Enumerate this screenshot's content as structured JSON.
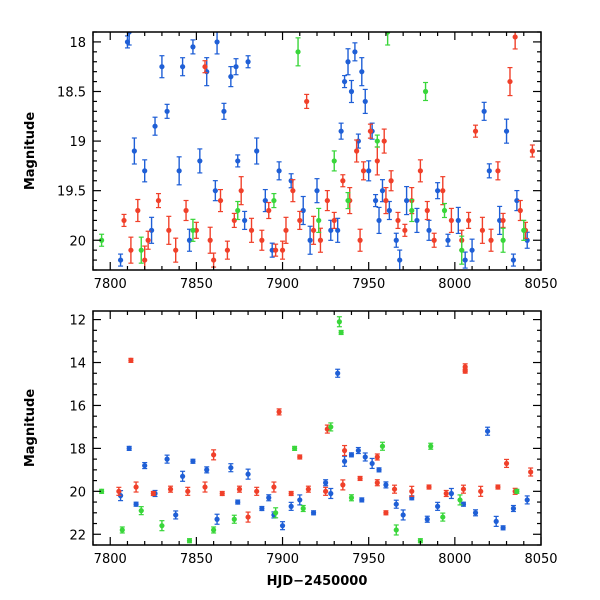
{
  "colors": {
    "blue": "#1f5fd6",
    "red": "#f0402a",
    "green": "#39d63a",
    "axis": "#000000"
  },
  "chart_data": [
    {
      "type": "scatter",
      "xlabel": "",
      "ylabel": "Magnitude",
      "xlim": [
        7790,
        8050
      ],
      "ylim": [
        20.3,
        17.9
      ],
      "y_inverted": true,
      "xticks": [
        7800,
        7850,
        7900,
        7950,
        8000,
        8050
      ],
      "yticks": [
        18,
        18.5,
        19,
        19.5,
        20
      ],
      "ytick_labels": [
        "18",
        "18.5",
        "19",
        "19.5",
        "20"
      ],
      "error_bars": true,
      "series": [
        {
          "color": "blue",
          "points": [
            [
              7810,
              18.0
            ],
            [
              7811,
              17.9
            ],
            [
              7830,
              18.25
            ],
            [
              7842,
              18.25
            ],
            [
              7848,
              18.05
            ],
            [
              7856,
              18.3
            ],
            [
              7862,
              18.0
            ],
            [
              7870,
              18.35
            ],
            [
              7873,
              18.25
            ],
            [
              7880,
              18.2
            ],
            [
              7814,
              19.1
            ],
            [
              7820,
              19.3
            ],
            [
              7826,
              18.85
            ],
            [
              7833,
              18.7
            ],
            [
              7840,
              19.3
            ],
            [
              7852,
              19.2
            ],
            [
              7861,
              19.5
            ],
            [
              7866,
              18.7
            ],
            [
              7874,
              19.2
            ],
            [
              7885,
              19.1
            ],
            [
              7890,
              19.6
            ],
            [
              7898,
              19.3
            ],
            [
              7905,
              19.4
            ],
            [
              7912,
              19.7
            ],
            [
              7920,
              19.5
            ],
            [
              7928,
              19.9
            ],
            [
              7934,
              18.9
            ],
            [
              7936,
              18.4
            ],
            [
              7938,
              18.2
            ],
            [
              7940,
              18.5
            ],
            [
              7942,
              18.1
            ],
            [
              7944,
              19.0
            ],
            [
              7946,
              18.3
            ],
            [
              7948,
              18.6
            ],
            [
              7950,
              19.3
            ],
            [
              7952,
              18.9
            ],
            [
              7954,
              19.6
            ],
            [
              7956,
              19.8
            ],
            [
              7958,
              19.5
            ],
            [
              7962,
              19.7
            ],
            [
              7966,
              20.0
            ],
            [
              7972,
              19.6
            ],
            [
              7978,
              19.8
            ],
            [
              7985,
              19.9
            ],
            [
              7990,
              19.5
            ],
            [
              7996,
              20.0
            ],
            [
              8002,
              19.8
            ],
            [
              8010,
              20.1
            ],
            [
              8017,
              18.7
            ],
            [
              8020,
              19.3
            ],
            [
              8026,
              19.8
            ],
            [
              8030,
              18.9
            ],
            [
              8036,
              19.6
            ],
            [
              8042,
              20.0
            ],
            [
              7806,
              20.2
            ],
            [
              7824,
              19.9
            ],
            [
              7846,
              20.0
            ],
            [
              7878,
              19.8
            ],
            [
              7894,
              20.1
            ],
            [
              7916,
              20.0
            ],
            [
              7932,
              19.9
            ],
            [
              7968,
              20.2
            ],
            [
              8006,
              20.2
            ],
            [
              8034,
              20.2
            ]
          ]
        },
        {
          "color": "red",
          "points": [
            [
              7808,
              19.8
            ],
            [
              7812,
              20.1
            ],
            [
              7816,
              19.7
            ],
            [
              7822,
              20.0
            ],
            [
              7828,
              19.6
            ],
            [
              7834,
              19.9
            ],
            [
              7838,
              20.1
            ],
            [
              7844,
              19.7
            ],
            [
              7850,
              19.9
            ],
            [
              7855,
              18.25
            ],
            [
              7858,
              20.0
            ],
            [
              7864,
              19.6
            ],
            [
              7868,
              20.1
            ],
            [
              7872,
              19.8
            ],
            [
              7876,
              19.5
            ],
            [
              7882,
              19.9
            ],
            [
              7888,
              20.0
            ],
            [
              7892,
              19.7
            ],
            [
              7896,
              20.1
            ],
            [
              7902,
              19.9
            ],
            [
              7906,
              19.5
            ],
            [
              7910,
              19.8
            ],
            [
              7914,
              18.6
            ],
            [
              7918,
              19.9
            ],
            [
              7922,
              20.0
            ],
            [
              7926,
              19.6
            ],
            [
              7930,
              19.8
            ],
            [
              7935,
              19.4
            ],
            [
              7939,
              19.6
            ],
            [
              7943,
              19.1
            ],
            [
              7947,
              19.3
            ],
            [
              7951,
              18.9
            ],
            [
              7955,
              19.2
            ],
            [
              7959,
              19.0
            ],
            [
              7963,
              19.4
            ],
            [
              7967,
              19.8
            ],
            [
              7971,
              19.9
            ],
            [
              7975,
              19.6
            ],
            [
              7980,
              19.3
            ],
            [
              7984,
              19.7
            ],
            [
              7988,
              20.0
            ],
            [
              7993,
              19.5
            ],
            [
              7998,
              19.8
            ],
            [
              8004,
              20.0
            ],
            [
              8008,
              19.8
            ],
            [
              8012,
              18.9
            ],
            [
              8016,
              19.9
            ],
            [
              8021,
              20.0
            ],
            [
              8025,
              19.3
            ],
            [
              8028,
              19.8
            ],
            [
              8032,
              18.4
            ],
            [
              8035,
              17.95
            ],
            [
              8038,
              19.7
            ],
            [
              8041,
              19.9
            ],
            [
              8045,
              19.1
            ],
            [
              7960,
              19.6
            ],
            [
              7945,
              20.0
            ],
            [
              7900,
              20.1
            ],
            [
              7860,
              20.2
            ],
            [
              7820,
              20.2
            ]
          ]
        },
        {
          "color": "green",
          "points": [
            [
              7795,
              20.0
            ],
            [
              7818,
              20.1
            ],
            [
              7848,
              19.9
            ],
            [
              7874,
              19.7
            ],
            [
              7895,
              19.6
            ],
            [
              7909,
              18.1
            ],
            [
              7921,
              19.8
            ],
            [
              7930,
              19.2
            ],
            [
              7938,
              19.6
            ],
            [
              7955,
              19.0
            ],
            [
              7961,
              17.9
            ],
            [
              7975,
              19.7
            ],
            [
              7983,
              18.5
            ],
            [
              7994,
              19.7
            ],
            [
              8004,
              20.1
            ],
            [
              8028,
              20.0
            ],
            [
              8040,
              19.9
            ]
          ]
        }
      ]
    },
    {
      "type": "scatter",
      "xlabel": "HJD−2450000",
      "ylabel": "Magnitude",
      "xlim": [
        7790,
        8050
      ],
      "ylim": [
        22.5,
        11.6
      ],
      "y_inverted": true,
      "xticks": [
        7800,
        7850,
        7900,
        7950,
        8000,
        8050
      ],
      "yticks": [
        12,
        14,
        16,
        18,
        20,
        22
      ],
      "ytick_labels": [
        "12",
        "14",
        "16",
        "18",
        "20",
        "22"
      ],
      "error_bars": true,
      "series": [
        {
          "color": "blue",
          "points": [
            [
              7811,
              18.0
            ],
            [
              7820,
              18.8
            ],
            [
              7833,
              18.5
            ],
            [
              7842,
              19.3
            ],
            [
              7848,
              18.6
            ],
            [
              7856,
              19.0
            ],
            [
              7870,
              18.9
            ],
            [
              7880,
              19.2
            ],
            [
              7888,
              20.8
            ],
            [
              7895,
              21.1
            ],
            [
              7900,
              21.6
            ],
            [
              7910,
              20.4
            ],
            [
              7918,
              21.0
            ],
            [
              7925,
              19.6
            ],
            [
              7932,
              14.5
            ],
            [
              7936,
              18.6
            ],
            [
              7940,
              18.3
            ],
            [
              7944,
              18.1
            ],
            [
              7948,
              18.4
            ],
            [
              7952,
              18.7
            ],
            [
              7956,
              19.0
            ],
            [
              7960,
              19.7
            ],
            [
              7966,
              20.6
            ],
            [
              7970,
              21.1
            ],
            [
              7975,
              20.3
            ],
            [
              7984,
              21.3
            ],
            [
              7990,
              20.7
            ],
            [
              7998,
              20.1
            ],
            [
              8005,
              20.6
            ],
            [
              8012,
              21.0
            ],
            [
              8019,
              17.2
            ],
            [
              8024,
              21.4
            ],
            [
              8028,
              21.7
            ],
            [
              8034,
              20.8
            ],
            [
              8042,
              20.4
            ],
            [
              7806,
              20.2
            ],
            [
              7815,
              20.6
            ],
            [
              7826,
              20.1
            ],
            [
              7838,
              21.1
            ],
            [
              7862,
              21.3
            ],
            [
              7874,
              20.5
            ],
            [
              7892,
              20.3
            ],
            [
              7905,
              20.7
            ],
            [
              7928,
              20.1
            ],
            [
              7946,
              20.4
            ]
          ]
        },
        {
          "color": "red",
          "points": [
            [
              7812,
              13.9
            ],
            [
              7898,
              16.3
            ],
            [
              7926,
              17.1
            ],
            [
              7936,
              18.1
            ],
            [
              8006,
              14.4
            ],
            [
              8006,
              14.2
            ],
            [
              7805,
              20.0
            ],
            [
              7815,
              19.8
            ],
            [
              7825,
              20.1
            ],
            [
              7835,
              19.9
            ],
            [
              7845,
              20.0
            ],
            [
              7855,
              19.8
            ],
            [
              7865,
              20.1
            ],
            [
              7875,
              19.9
            ],
            [
              7885,
              20.0
            ],
            [
              7895,
              19.8
            ],
            [
              7905,
              20.1
            ],
            [
              7915,
              19.9
            ],
            [
              7925,
              20.0
            ],
            [
              7935,
              19.7
            ],
            [
              7945,
              19.4
            ],
            [
              7955,
              19.6
            ],
            [
              7965,
              19.9
            ],
            [
              7975,
              20.0
            ],
            [
              7985,
              19.8
            ],
            [
              7995,
              20.1
            ],
            [
              8005,
              19.9
            ],
            [
              8015,
              20.0
            ],
            [
              8025,
              19.8
            ],
            [
              8035,
              20.0
            ],
            [
              8044,
              19.1
            ],
            [
              7860,
              18.3
            ],
            [
              7910,
              18.4
            ],
            [
              7955,
              18.4
            ],
            [
              8030,
              18.7
            ],
            [
              7880,
              21.2
            ],
            [
              7960,
              21.0
            ]
          ]
        },
        {
          "color": "green",
          "points": [
            [
              7795,
              20.0
            ],
            [
              7807,
              21.8
            ],
            [
              7818,
              20.9
            ],
            [
              7830,
              21.6
            ],
            [
              7846,
              22.3
            ],
            [
              7860,
              21.8
            ],
            [
              7872,
              21.3
            ],
            [
              7896,
              21.0
            ],
            [
              7907,
              18.0
            ],
            [
              7912,
              20.8
            ],
            [
              7928,
              17.0
            ],
            [
              7933,
              12.1
            ],
            [
              7934,
              12.6
            ],
            [
              7940,
              20.3
            ],
            [
              7958,
              17.9
            ],
            [
              7966,
              21.8
            ],
            [
              7980,
              22.3
            ],
            [
              7986,
              17.9
            ],
            [
              7993,
              21.2
            ],
            [
              8003,
              20.4
            ],
            [
              8036,
              20.0
            ]
          ]
        }
      ]
    }
  ]
}
